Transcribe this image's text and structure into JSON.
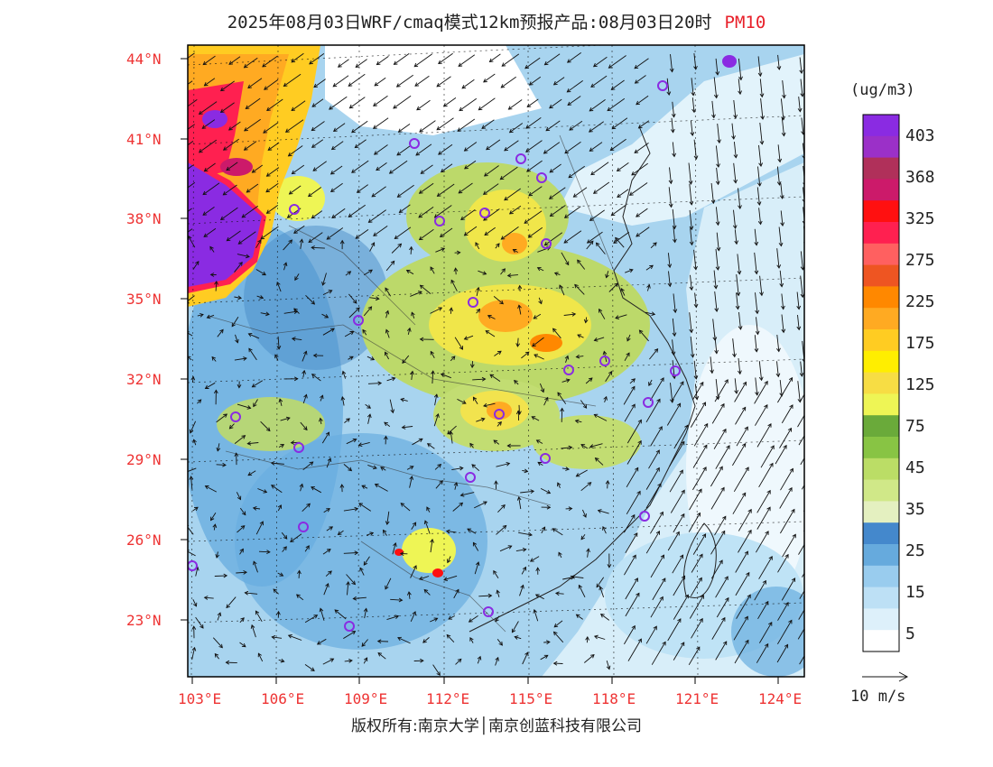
{
  "title": {
    "text": "2025年08月03日WRF/cmaq模式12km预报产品:08月03日20时",
    "variable": "PM10"
  },
  "map": {
    "lat_labels": [
      "44°N",
      "41°N",
      "38°N",
      "35°N",
      "32°N",
      "29°N",
      "26°N",
      "23°N"
    ],
    "lon_labels": [
      "103°E",
      "106°E",
      "109°E",
      "112°E",
      "115°E",
      "118°E",
      "121°E",
      "124°E"
    ]
  },
  "colorbar": {
    "unit": "(ug/m3)",
    "labels": [
      "403",
      "368",
      "325",
      "275",
      "225",
      "175",
      "125",
      "75",
      "45",
      "35",
      "25",
      "15",
      "5"
    ],
    "colors": [
      "#8a2be2",
      "#9b30c8",
      "#b0305a",
      "#cc1a6a",
      "#ff1010",
      "#ff2050",
      "#ff6060",
      "#ee5522",
      "#ff8800",
      "#ffaa22",
      "#ffcc22",
      "#ffee00",
      "#f7dd44",
      "#eef555",
      "#6aaa3a",
      "#88c444",
      "#bbdd66",
      "#d0e888",
      "#e4f0c0",
      "#4488cc",
      "#66aadd",
      "#99ccee",
      "#bde0f5",
      "#ddf0fa",
      "#ffffff"
    ]
  },
  "wind": {
    "label": "10 m/s"
  },
  "footer": {
    "text": "版权所有:南京大学│南京创蓝科技有限公司"
  }
}
